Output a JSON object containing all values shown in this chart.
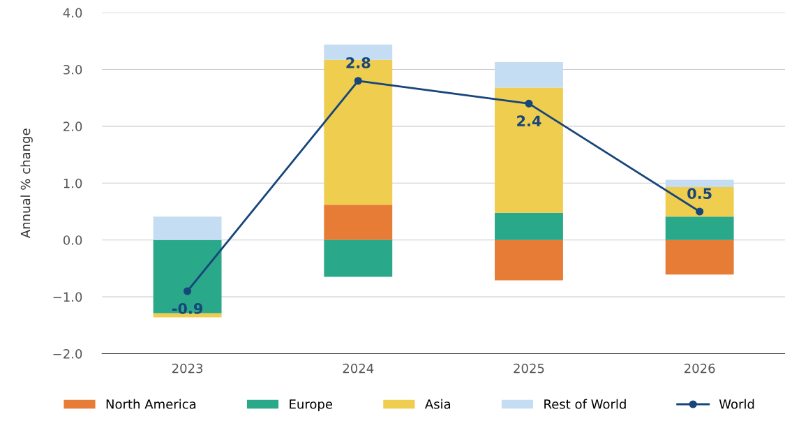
{
  "chart_data": {
    "type": "bar",
    "stacked": true,
    "ylabel": "Annual % change",
    "categories": [
      "2023",
      "2024",
      "2025",
      "2026"
    ],
    "series": [
      {
        "name": "North America",
        "color": "#e67c35",
        "values": [
          0,
          0.62,
          -0.71,
          -0.61
        ]
      },
      {
        "name": "Europe",
        "color": "#2aa88a",
        "values": [
          -1.29,
          -0.65,
          0.48,
          0.41
        ]
      },
      {
        "name": "Asia",
        "color": "#eecd4f",
        "values": [
          -0.07,
          2.55,
          2.2,
          0.52
        ]
      },
      {
        "name": "Rest of World",
        "color": "#c5ddf2",
        "values": [
          0.41,
          0.27,
          0.45,
          0.13
        ]
      },
      {
        "name": "World",
        "type": "line",
        "color": "#17467a",
        "marker": "circle",
        "values": [
          -0.9,
          2.8,
          2.4,
          0.5
        ],
        "value_labels": [
          "-0.9",
          "2.8",
          "2.4",
          "0.5"
        ]
      }
    ],
    "ylim": [
      -2.0,
      4.0
    ],
    "yticks": [
      {
        "value": -2.0,
        "label": "−2.0"
      },
      {
        "value": -1.0,
        "label": "−1.0"
      },
      {
        "value": 0.0,
        "label": "0.0"
      },
      {
        "value": 1.0,
        "label": "1.0"
      },
      {
        "value": 2.0,
        "label": "2.0"
      },
      {
        "value": 3.0,
        "label": "3.0"
      },
      {
        "value": 4.0,
        "label": "4.0"
      }
    ],
    "grid": "y",
    "legend": "bottom"
  }
}
